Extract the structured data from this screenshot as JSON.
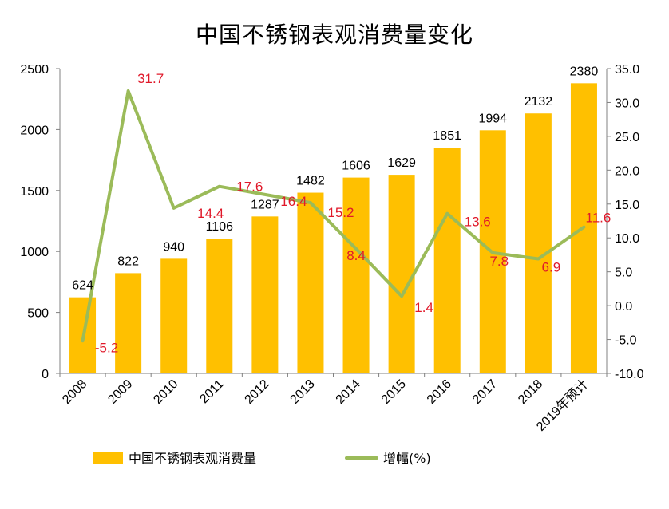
{
  "chart_data": {
    "type": "bar",
    "title": "中国不锈钢表观消费量变化",
    "categories": [
      "2008",
      "2009",
      "2010",
      "2011",
      "2012",
      "2013",
      "2014",
      "2015",
      "2016",
      "2017",
      "2018",
      "2019年预计"
    ],
    "series": [
      {
        "name": "中国不锈钢表观消费量",
        "type": "bar",
        "axis": "left",
        "color": "#FFC000",
        "values": [
          624,
          822,
          940,
          1106,
          1287,
          1482,
          1606,
          1629,
          1851,
          1994,
          2132,
          2380
        ]
      },
      {
        "name": "增幅(%)",
        "type": "line",
        "axis": "right",
        "color": "#9BBB59",
        "values": [
          -5.2,
          31.7,
          14.4,
          17.6,
          16.4,
          15.2,
          8.4,
          1.4,
          13.6,
          7.8,
          6.9,
          11.6
        ]
      }
    ],
    "y_left": {
      "ylim": [
        0,
        2500
      ],
      "ticks": [
        0,
        500,
        1000,
        1500,
        2000,
        2500
      ]
    },
    "y_right": {
      "ylim": [
        -10,
        35
      ],
      "ticks": [
        "-10.0",
        "-5.0",
        "0.0",
        "5.0",
        "10.0",
        "15.0",
        "20.0",
        "25.0",
        "30.0",
        "35.0"
      ]
    },
    "xlabel": "",
    "ylabel": "",
    "grid": false,
    "legend": "bottom",
    "bar_label_color": "#000000",
    "line_label_color": "#E0192A"
  }
}
